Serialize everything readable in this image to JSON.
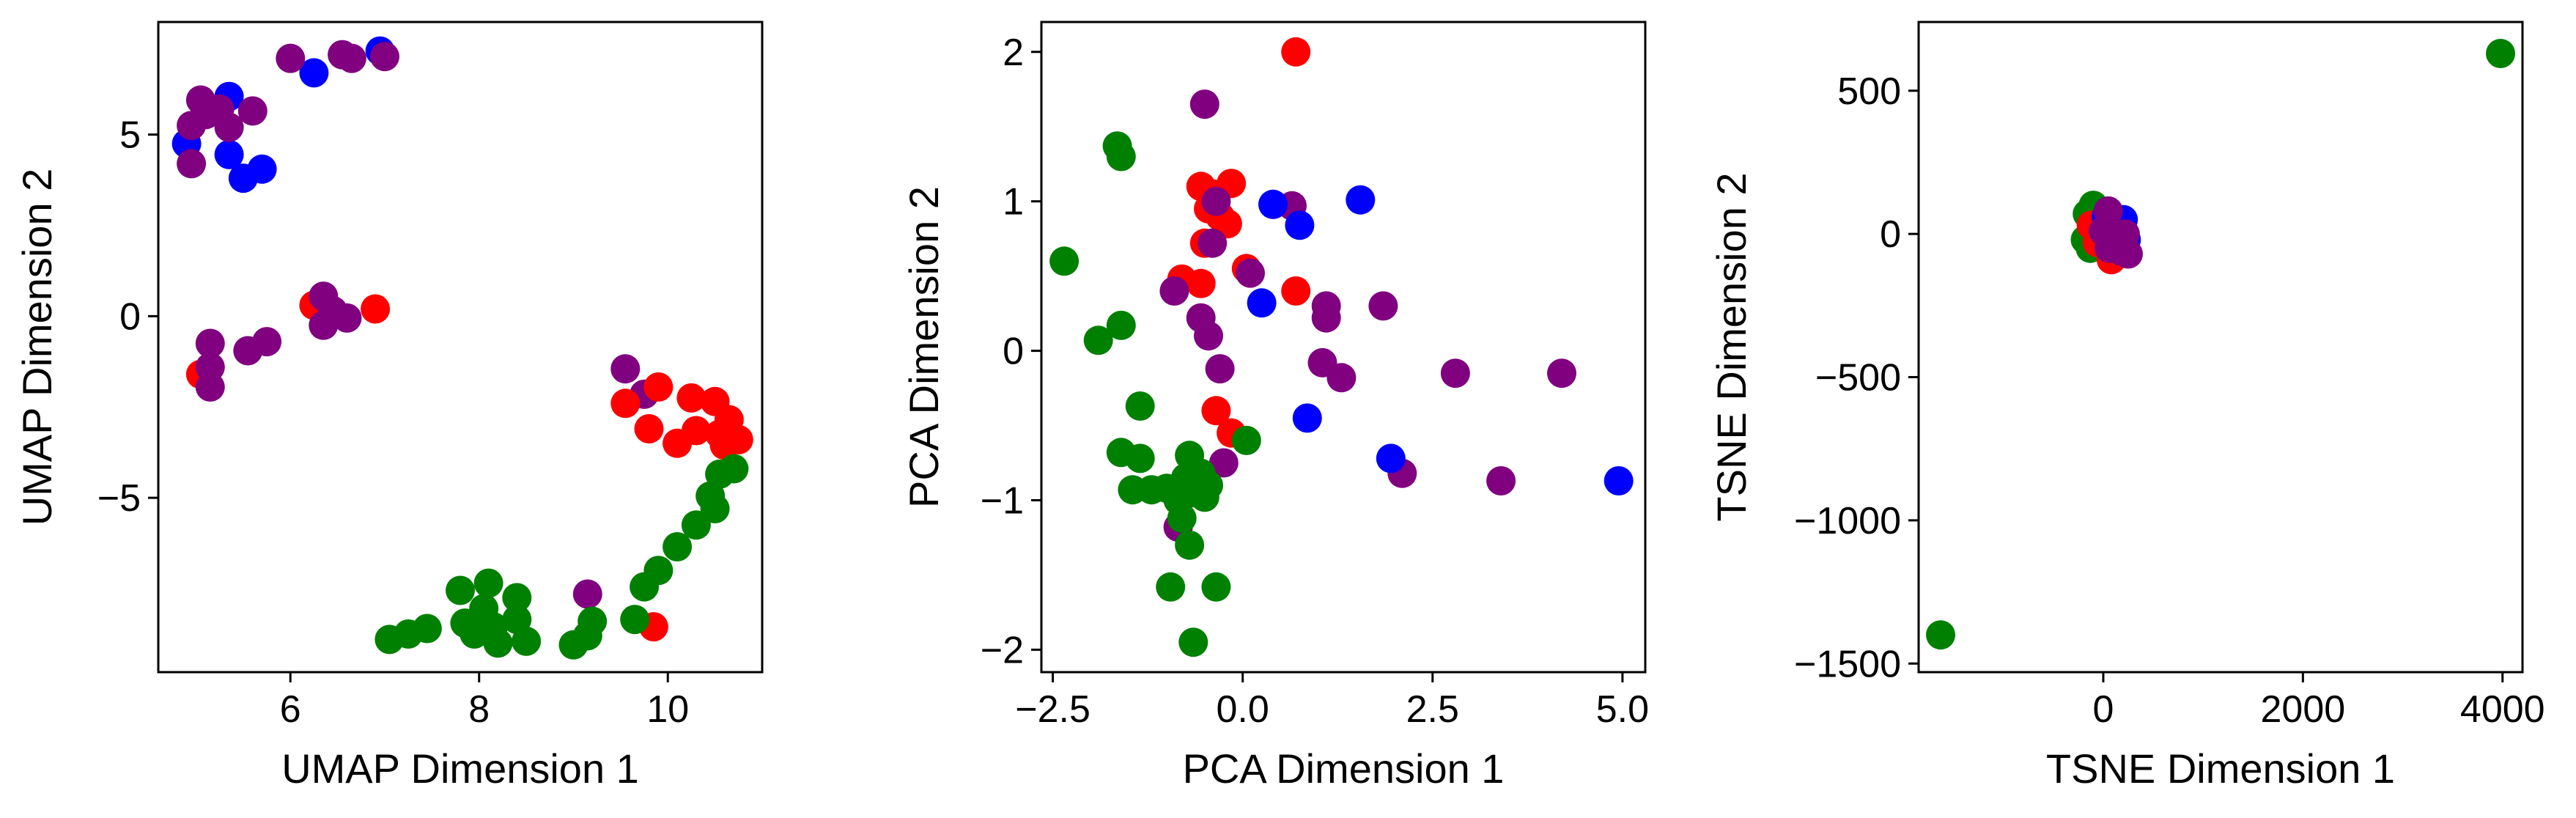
{
  "chart_data": [
    {
      "type": "scatter",
      "title": "",
      "xlabel": "UMAP Dimension 1",
      "ylabel": "UMAP Dimension 2",
      "xlim": [
        4.6,
        11.0
      ],
      "ylim": [
        -9.8,
        8.1
      ],
      "xticks": [
        6,
        8,
        10
      ],
      "xtick_labels": [
        "6",
        "8",
        "10"
      ],
      "yticks": [
        -5,
        0,
        5
      ],
      "ytick_labels": [
        "−5",
        "0",
        "5"
      ],
      "grid": false,
      "points": [
        {
          "x": 6.95,
          "y": 7.3,
          "c": "blue"
        },
        {
          "x": 6.25,
          "y": 6.7,
          "c": "blue"
        },
        {
          "x": 5.35,
          "y": 6.05,
          "c": "blue"
        },
        {
          "x": 4.9,
          "y": 4.75,
          "c": "blue"
        },
        {
          "x": 5.35,
          "y": 4.45,
          "c": "blue"
        },
        {
          "x": 5.5,
          "y": 3.8,
          "c": "blue"
        },
        {
          "x": 5.7,
          "y": 4.05,
          "c": "blue"
        },
        {
          "x": 6.0,
          "y": 7.1,
          "c": "purple"
        },
        {
          "x": 6.55,
          "y": 7.2,
          "c": "purple"
        },
        {
          "x": 6.65,
          "y": 7.1,
          "c": "purple"
        },
        {
          "x": 7.0,
          "y": 7.15,
          "c": "purple"
        },
        {
          "x": 5.05,
          "y": 5.95,
          "c": "purple"
        },
        {
          "x": 5.25,
          "y": 5.7,
          "c": "purple"
        },
        {
          "x": 5.1,
          "y": 5.55,
          "c": "purple"
        },
        {
          "x": 4.95,
          "y": 5.25,
          "c": "purple"
        },
        {
          "x": 5.35,
          "y": 5.2,
          "c": "purple"
        },
        {
          "x": 5.6,
          "y": 5.65,
          "c": "purple"
        },
        {
          "x": 4.95,
          "y": 4.2,
          "c": "purple"
        },
        {
          "x": 6.25,
          "y": 0.3,
          "c": "red"
        },
        {
          "x": 6.9,
          "y": 0.2,
          "c": "red"
        },
        {
          "x": 5.05,
          "y": -1.6,
          "c": "red"
        },
        {
          "x": 6.35,
          "y": 0.55,
          "c": "purple"
        },
        {
          "x": 6.45,
          "y": 0.15,
          "c": "purple"
        },
        {
          "x": 6.6,
          "y": -0.05,
          "c": "purple"
        },
        {
          "x": 6.35,
          "y": -0.25,
          "c": "purple"
        },
        {
          "x": 5.15,
          "y": -0.75,
          "c": "purple"
        },
        {
          "x": 5.55,
          "y": -0.95,
          "c": "purple"
        },
        {
          "x": 5.75,
          "y": -0.7,
          "c": "purple"
        },
        {
          "x": 5.15,
          "y": -1.4,
          "c": "purple"
        },
        {
          "x": 5.15,
          "y": -1.95,
          "c": "purple"
        },
        {
          "x": 9.55,
          "y": -1.45,
          "c": "purple"
        },
        {
          "x": 9.75,
          "y": -2.15,
          "c": "purple"
        },
        {
          "x": 9.15,
          "y": -7.65,
          "c": "purple"
        },
        {
          "x": 9.55,
          "y": -2.4,
          "c": "red"
        },
        {
          "x": 9.9,
          "y": -1.95,
          "c": "red"
        },
        {
          "x": 10.25,
          "y": -2.25,
          "c": "red"
        },
        {
          "x": 10.5,
          "y": -2.35,
          "c": "red"
        },
        {
          "x": 10.65,
          "y": -2.85,
          "c": "red"
        },
        {
          "x": 9.8,
          "y": -3.1,
          "c": "red"
        },
        {
          "x": 10.1,
          "y": -3.5,
          "c": "red"
        },
        {
          "x": 10.3,
          "y": -3.15,
          "c": "red"
        },
        {
          "x": 10.55,
          "y": -3.25,
          "c": "red"
        },
        {
          "x": 10.75,
          "y": -3.4,
          "c": "red"
        },
        {
          "x": 10.6,
          "y": -3.55,
          "c": "red"
        },
        {
          "x": 9.85,
          "y": -8.55,
          "c": "red"
        },
        {
          "x": 10.7,
          "y": -4.2,
          "c": "green"
        },
        {
          "x": 10.55,
          "y": -4.35,
          "c": "green"
        },
        {
          "x": 10.45,
          "y": -4.95,
          "c": "green"
        },
        {
          "x": 10.5,
          "y": -5.3,
          "c": "green"
        },
        {
          "x": 10.3,
          "y": -5.75,
          "c": "green"
        },
        {
          "x": 10.1,
          "y": -6.35,
          "c": "green"
        },
        {
          "x": 9.9,
          "y": -7.0,
          "c": "green"
        },
        {
          "x": 9.75,
          "y": -7.45,
          "c": "green"
        },
        {
          "x": 9.65,
          "y": -8.35,
          "c": "green"
        },
        {
          "x": 9.2,
          "y": -8.4,
          "c": "green"
        },
        {
          "x": 9.15,
          "y": -8.8,
          "c": "green"
        },
        {
          "x": 9.0,
          "y": -9.05,
          "c": "green"
        },
        {
          "x": 7.8,
          "y": -7.55,
          "c": "green"
        },
        {
          "x": 8.1,
          "y": -7.35,
          "c": "green"
        },
        {
          "x": 8.4,
          "y": -7.75,
          "c": "green"
        },
        {
          "x": 8.05,
          "y": -8.05,
          "c": "green"
        },
        {
          "x": 7.85,
          "y": -8.45,
          "c": "green"
        },
        {
          "x": 8.15,
          "y": -8.55,
          "c": "green"
        },
        {
          "x": 8.4,
          "y": -8.35,
          "c": "green"
        },
        {
          "x": 7.95,
          "y": -8.75,
          "c": "green"
        },
        {
          "x": 8.2,
          "y": -9.0,
          "c": "green"
        },
        {
          "x": 8.5,
          "y": -8.95,
          "c": "green"
        },
        {
          "x": 7.45,
          "y": -8.6,
          "c": "green"
        },
        {
          "x": 7.25,
          "y": -8.75,
          "c": "green"
        },
        {
          "x": 7.05,
          "y": -8.9,
          "c": "green"
        }
      ]
    },
    {
      "type": "scatter",
      "title": "",
      "xlabel": "PCA Dimension 1",
      "ylabel": "PCA Dimension 2",
      "xlim": [
        -2.65,
        5.3
      ],
      "ylim": [
        -2.15,
        2.2
      ],
      "xticks": [
        -2.5,
        0.0,
        2.5,
        5.0
      ],
      "xtick_labels": [
        "−2.5",
        "0.0",
        "2.5",
        "5.0"
      ],
      "yticks": [
        -2,
        -1,
        0,
        1,
        2
      ],
      "ytick_labels": [
        "−2",
        "−1",
        "0",
        "1",
        "2"
      ],
      "grid": false,
      "points": [
        {
          "x": 0.7,
          "y": 2.0,
          "c": "red"
        },
        {
          "x": -0.5,
          "y": 1.65,
          "c": "purple"
        },
        {
          "x": -1.65,
          "y": 1.37,
          "c": "green"
        },
        {
          "x": -1.6,
          "y": 1.3,
          "c": "green"
        },
        {
          "x": -2.35,
          "y": 0.6,
          "c": "green"
        },
        {
          "x": -0.55,
          "y": 1.1,
          "c": "red"
        },
        {
          "x": -0.4,
          "y": 1.05,
          "c": "red"
        },
        {
          "x": -0.15,
          "y": 1.12,
          "c": "red"
        },
        {
          "x": -0.45,
          "y": 0.95,
          "c": "red"
        },
        {
          "x": -0.3,
          "y": 0.9,
          "c": "red"
        },
        {
          "x": -0.2,
          "y": 0.85,
          "c": "red"
        },
        {
          "x": -0.5,
          "y": 0.72,
          "c": "red"
        },
        {
          "x": 0.05,
          "y": 0.55,
          "c": "red"
        },
        {
          "x": -0.8,
          "y": 0.48,
          "c": "red"
        },
        {
          "x": -0.55,
          "y": 0.45,
          "c": "red"
        },
        {
          "x": 0.7,
          "y": 0.4,
          "c": "red"
        },
        {
          "x": -0.35,
          "y": -0.4,
          "c": "red"
        },
        {
          "x": -0.15,
          "y": -0.55,
          "c": "red"
        },
        {
          "x": -0.35,
          "y": 1.0,
          "c": "purple"
        },
        {
          "x": 0.4,
          "y": 0.98,
          "c": "purple"
        },
        {
          "x": 0.65,
          "y": 0.97,
          "c": "purple"
        },
        {
          "x": -0.4,
          "y": 0.72,
          "c": "purple"
        },
        {
          "x": 0.1,
          "y": 0.52,
          "c": "purple"
        },
        {
          "x": -0.9,
          "y": 0.4,
          "c": "purple"
        },
        {
          "x": -0.55,
          "y": 0.22,
          "c": "purple"
        },
        {
          "x": -0.45,
          "y": 0.1,
          "c": "purple"
        },
        {
          "x": 1.1,
          "y": 0.3,
          "c": "purple"
        },
        {
          "x": 1.1,
          "y": 0.22,
          "c": "purple"
        },
        {
          "x": 1.85,
          "y": 0.3,
          "c": "purple"
        },
        {
          "x": 1.05,
          "y": -0.08,
          "c": "purple"
        },
        {
          "x": 1.3,
          "y": -0.18,
          "c": "purple"
        },
        {
          "x": -0.3,
          "y": -0.12,
          "c": "purple"
        },
        {
          "x": 2.8,
          "y": -0.15,
          "c": "purple"
        },
        {
          "x": 4.2,
          "y": -0.15,
          "c": "purple"
        },
        {
          "x": -0.25,
          "y": -0.75,
          "c": "purple"
        },
        {
          "x": 2.1,
          "y": -0.82,
          "c": "purple"
        },
        {
          "x": 3.4,
          "y": -0.87,
          "c": "purple"
        },
        {
          "x": -0.85,
          "y": -1.18,
          "c": "purple"
        },
        {
          "x": 0.4,
          "y": 0.98,
          "c": "blue"
        },
        {
          "x": 1.55,
          "y": 1.01,
          "c": "blue"
        },
        {
          "x": 0.75,
          "y": 0.84,
          "c": "blue"
        },
        {
          "x": 0.25,
          "y": 0.32,
          "c": "blue"
        },
        {
          "x": 0.85,
          "y": -0.45,
          "c": "blue"
        },
        {
          "x": 1.95,
          "y": -0.72,
          "c": "blue"
        },
        {
          "x": 4.95,
          "y": -0.87,
          "c": "blue"
        },
        {
          "x": -1.6,
          "y": 0.17,
          "c": "green"
        },
        {
          "x": -1.9,
          "y": 0.07,
          "c": "green"
        },
        {
          "x": -1.35,
          "y": -0.37,
          "c": "green"
        },
        {
          "x": 0.05,
          "y": -0.6,
          "c": "green"
        },
        {
          "x": -1.6,
          "y": -0.68,
          "c": "green"
        },
        {
          "x": -1.35,
          "y": -0.72,
          "c": "green"
        },
        {
          "x": -0.7,
          "y": -0.7,
          "c": "green"
        },
        {
          "x": -0.55,
          "y": -0.82,
          "c": "green"
        },
        {
          "x": -0.75,
          "y": -0.85,
          "c": "green"
        },
        {
          "x": -0.45,
          "y": -0.9,
          "c": "green"
        },
        {
          "x": -1.45,
          "y": -0.93,
          "c": "green"
        },
        {
          "x": -1.2,
          "y": -0.93,
          "c": "green"
        },
        {
          "x": -1.0,
          "y": -0.92,
          "c": "green"
        },
        {
          "x": -0.65,
          "y": -0.95,
          "c": "green"
        },
        {
          "x": -0.5,
          "y": -0.98,
          "c": "green"
        },
        {
          "x": -0.85,
          "y": -1.0,
          "c": "green"
        },
        {
          "x": -0.8,
          "y": -1.12,
          "c": "green"
        },
        {
          "x": -0.7,
          "y": -1.3,
          "c": "green"
        },
        {
          "x": -0.95,
          "y": -1.58,
          "c": "green"
        },
        {
          "x": -0.35,
          "y": -1.58,
          "c": "green"
        },
        {
          "x": -0.65,
          "y": -1.95,
          "c": "green"
        }
      ]
    },
    {
      "type": "scatter",
      "title": "",
      "xlabel": "TSNE Dimension 1",
      "ylabel": "TSNE Dimension 2",
      "xlim": [
        -1850,
        4200
      ],
      "ylim": [
        -1530,
        740
      ],
      "xticks": [
        0,
        2000,
        4000
      ],
      "xtick_labels": [
        "0",
        "2000",
        "4000"
      ],
      "yticks": [
        -1500,
        -1000,
        -500,
        0,
        500
      ],
      "ytick_labels": [
        "−1500",
        "−1000",
        "−500",
        "0",
        "500"
      ],
      "grid": false,
      "points": [
        {
          "x": 3980,
          "y": 630,
          "c": "green"
        },
        {
          "x": -1630,
          "y": -1400,
          "c": "green"
        },
        {
          "x": -180,
          "y": -20,
          "c": "green"
        },
        {
          "x": -130,
          "y": -50,
          "c": "green"
        },
        {
          "x": -160,
          "y": 70,
          "c": "green"
        },
        {
          "x": -100,
          "y": 100,
          "c": "green"
        },
        {
          "x": -50,
          "y": 20,
          "c": "green"
        },
        {
          "x": -120,
          "y": 30,
          "c": "red"
        },
        {
          "x": -60,
          "y": -30,
          "c": "red"
        },
        {
          "x": 80,
          "y": -90,
          "c": "red"
        },
        {
          "x": 150,
          "y": 20,
          "c": "red"
        },
        {
          "x": 30,
          "y": 60,
          "c": "blue"
        },
        {
          "x": 200,
          "y": 50,
          "c": "blue"
        },
        {
          "x": 230,
          "y": -20,
          "c": "blue"
        },
        {
          "x": 50,
          "y": 80,
          "c": "purple"
        },
        {
          "x": 150,
          "y": 0,
          "c": "purple"
        },
        {
          "x": 220,
          "y": 0,
          "c": "purple"
        },
        {
          "x": 0,
          "y": 10,
          "c": "purple"
        },
        {
          "x": 100,
          "y": -30,
          "c": "purple"
        },
        {
          "x": 180,
          "y": -60,
          "c": "purple"
        },
        {
          "x": 250,
          "y": -70,
          "c": "purple"
        },
        {
          "x": 60,
          "y": -50,
          "c": "purple"
        }
      ]
    }
  ],
  "colors": {
    "red": "#ff0000",
    "blue": "#0000ff",
    "purple": "#800080",
    "green": "#008000"
  }
}
